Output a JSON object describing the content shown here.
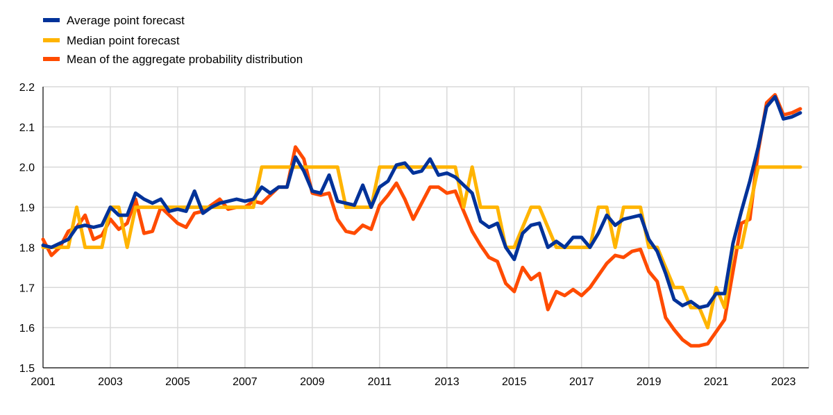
{
  "chart_data": {
    "type": "line",
    "title": "",
    "xlabel": "",
    "ylabel": "",
    "xlim": [
      2001.0,
      2023.75
    ],
    "ylim": [
      1.5,
      2.2
    ],
    "xticks": [
      2001,
      2003,
      2005,
      2007,
      2009,
      2011,
      2013,
      2015,
      2017,
      2019,
      2021,
      2023
    ],
    "yticks": [
      "1.5",
      "1.6",
      "1.7",
      "1.8",
      "1.9",
      "2.0",
      "2.1",
      "2.2"
    ],
    "grid": true,
    "legend_position": "top-left",
    "series": [
      {
        "name": "Mean of the aggregate probability distribution",
        "color": "#ff4b00",
        "points": [
          [
            2001.0,
            1.82
          ],
          [
            2001.25,
            1.78
          ],
          [
            2001.5,
            1.8
          ],
          [
            2001.75,
            1.84
          ],
          [
            2002.0,
            1.85
          ],
          [
            2002.25,
            1.88
          ],
          [
            2002.5,
            1.82
          ],
          [
            2002.75,
            1.83
          ],
          [
            2003.0,
            1.87
          ],
          [
            2003.25,
            1.845
          ],
          [
            2003.5,
            1.86
          ],
          [
            2003.75,
            1.92
          ],
          [
            2004.0,
            1.835
          ],
          [
            2004.25,
            1.84
          ],
          [
            2004.5,
            1.9
          ],
          [
            2004.75,
            1.88
          ],
          [
            2005.0,
            1.86
          ],
          [
            2005.25,
            1.85
          ],
          [
            2005.5,
            1.885
          ],
          [
            2005.75,
            1.89
          ],
          [
            2006.0,
            1.905
          ],
          [
            2006.25,
            1.92
          ],
          [
            2006.5,
            1.895
          ],
          [
            2006.75,
            1.9
          ],
          [
            2007.0,
            1.9
          ],
          [
            2007.25,
            1.915
          ],
          [
            2007.5,
            1.91
          ],
          [
            2007.75,
            1.93
          ],
          [
            2008.0,
            1.95
          ],
          [
            2008.25,
            1.95
          ],
          [
            2008.5,
            2.05
          ],
          [
            2008.75,
            2.02
          ],
          [
            2009.0,
            1.935
          ],
          [
            2009.25,
            1.93
          ],
          [
            2009.5,
            1.935
          ],
          [
            2009.75,
            1.87
          ],
          [
            2010.0,
            1.84
          ],
          [
            2010.25,
            1.835
          ],
          [
            2010.5,
            1.855
          ],
          [
            2010.75,
            1.845
          ],
          [
            2011.0,
            1.905
          ],
          [
            2011.25,
            1.93
          ],
          [
            2011.5,
            1.96
          ],
          [
            2011.75,
            1.92
          ],
          [
            2012.0,
            1.87
          ],
          [
            2012.25,
            1.91
          ],
          [
            2012.5,
            1.95
          ],
          [
            2012.75,
            1.95
          ],
          [
            2013.0,
            1.935
          ],
          [
            2013.25,
            1.94
          ],
          [
            2013.5,
            1.89
          ],
          [
            2013.75,
            1.84
          ],
          [
            2014.0,
            1.805
          ],
          [
            2014.25,
            1.775
          ],
          [
            2014.5,
            1.765
          ],
          [
            2014.75,
            1.71
          ],
          [
            2015.0,
            1.69
          ],
          [
            2015.25,
            1.75
          ],
          [
            2015.5,
            1.72
          ],
          [
            2015.75,
            1.735
          ],
          [
            2016.0,
            1.645
          ],
          [
            2016.25,
            1.69
          ],
          [
            2016.5,
            1.68
          ],
          [
            2016.75,
            1.695
          ],
          [
            2017.0,
            1.68
          ],
          [
            2017.25,
            1.7
          ],
          [
            2017.5,
            1.73
          ],
          [
            2017.75,
            1.76
          ],
          [
            2018.0,
            1.78
          ],
          [
            2018.25,
            1.775
          ],
          [
            2018.5,
            1.79
          ],
          [
            2018.75,
            1.795
          ],
          [
            2019.0,
            1.74
          ],
          [
            2019.25,
            1.715
          ],
          [
            2019.5,
            1.625
          ],
          [
            2019.75,
            1.595
          ],
          [
            2020.0,
            1.57
          ],
          [
            2020.25,
            1.555
          ],
          [
            2020.5,
            1.555
          ],
          [
            2020.75,
            1.56
          ],
          [
            2021.0,
            1.59
          ],
          [
            2021.25,
            1.62
          ],
          [
            2021.5,
            1.74
          ],
          [
            2021.75,
            1.86
          ],
          [
            2022.0,
            1.87
          ],
          [
            2022.25,
            2.04
          ],
          [
            2022.5,
            2.16
          ],
          [
            2022.75,
            2.18
          ],
          [
            2023.0,
            2.13
          ],
          [
            2023.25,
            2.135
          ],
          [
            2023.5,
            2.145
          ]
        ]
      },
      {
        "name": "Median point forecast",
        "color": "#ffb400",
        "points": [
          [
            2001.0,
            1.8
          ],
          [
            2001.25,
            1.8
          ],
          [
            2001.5,
            1.8
          ],
          [
            2001.75,
            1.8
          ],
          [
            2002.0,
            1.9
          ],
          [
            2002.25,
            1.8
          ],
          [
            2002.5,
            1.8
          ],
          [
            2002.75,
            1.8
          ],
          [
            2003.0,
            1.9
          ],
          [
            2003.25,
            1.9
          ],
          [
            2003.5,
            1.8
          ],
          [
            2003.75,
            1.9
          ],
          [
            2004.0,
            1.9
          ],
          [
            2004.25,
            1.9
          ],
          [
            2004.5,
            1.9
          ],
          [
            2004.75,
            1.9
          ],
          [
            2005.0,
            1.9
          ],
          [
            2005.25,
            1.9
          ],
          [
            2005.5,
            1.9
          ],
          [
            2005.75,
            1.9
          ],
          [
            2006.0,
            1.9
          ],
          [
            2006.25,
            1.9
          ],
          [
            2006.5,
            1.9
          ],
          [
            2006.75,
            1.9
          ],
          [
            2007.0,
            1.9
          ],
          [
            2007.25,
            1.9
          ],
          [
            2007.5,
            2.0
          ],
          [
            2007.75,
            2.0
          ],
          [
            2008.0,
            2.0
          ],
          [
            2008.25,
            2.0
          ],
          [
            2008.5,
            2.0
          ],
          [
            2008.75,
            2.0
          ],
          [
            2009.0,
            2.0
          ],
          [
            2009.25,
            2.0
          ],
          [
            2009.5,
            2.0
          ],
          [
            2009.75,
            2.0
          ],
          [
            2010.0,
            1.9
          ],
          [
            2010.25,
            1.9
          ],
          [
            2010.5,
            1.9
          ],
          [
            2010.75,
            1.9
          ],
          [
            2011.0,
            2.0
          ],
          [
            2011.25,
            2.0
          ],
          [
            2011.5,
            2.0
          ],
          [
            2011.75,
            2.0
          ],
          [
            2012.0,
            2.0
          ],
          [
            2012.25,
            2.0
          ],
          [
            2012.5,
            2.0
          ],
          [
            2012.75,
            2.0
          ],
          [
            2013.0,
            2.0
          ],
          [
            2013.25,
            2.0
          ],
          [
            2013.5,
            1.9
          ],
          [
            2013.75,
            2.0
          ],
          [
            2014.0,
            1.9
          ],
          [
            2014.25,
            1.9
          ],
          [
            2014.5,
            1.9
          ],
          [
            2014.75,
            1.8
          ],
          [
            2015.0,
            1.8
          ],
          [
            2015.25,
            1.85
          ],
          [
            2015.5,
            1.9
          ],
          [
            2015.75,
            1.9
          ],
          [
            2016.0,
            1.85
          ],
          [
            2016.25,
            1.8
          ],
          [
            2016.5,
            1.8
          ],
          [
            2016.75,
            1.8
          ],
          [
            2017.0,
            1.8
          ],
          [
            2017.25,
            1.8
          ],
          [
            2017.5,
            1.9
          ],
          [
            2017.75,
            1.9
          ],
          [
            2018.0,
            1.8
          ],
          [
            2018.25,
            1.9
          ],
          [
            2018.5,
            1.9
          ],
          [
            2018.75,
            1.9
          ],
          [
            2019.0,
            1.8
          ],
          [
            2019.25,
            1.8
          ],
          [
            2019.5,
            1.75
          ],
          [
            2019.75,
            1.7
          ],
          [
            2020.0,
            1.7
          ],
          [
            2020.25,
            1.65
          ],
          [
            2020.5,
            1.65
          ],
          [
            2020.75,
            1.6
          ],
          [
            2021.0,
            1.7
          ],
          [
            2021.25,
            1.65
          ],
          [
            2021.5,
            1.8
          ],
          [
            2021.75,
            1.8
          ],
          [
            2022.0,
            1.9
          ],
          [
            2022.25,
            2.0
          ],
          [
            2022.5,
            2.0
          ],
          [
            2022.75,
            2.0
          ],
          [
            2023.0,
            2.0
          ],
          [
            2023.25,
            2.0
          ],
          [
            2023.5,
            2.0
          ]
        ]
      },
      {
        "name": "Average point forecast",
        "color": "#003299",
        "points": [
          [
            2001.0,
            1.805
          ],
          [
            2001.25,
            1.8
          ],
          [
            2001.5,
            1.81
          ],
          [
            2001.75,
            1.82
          ],
          [
            2002.0,
            1.85
          ],
          [
            2002.25,
            1.855
          ],
          [
            2002.5,
            1.85
          ],
          [
            2002.75,
            1.855
          ],
          [
            2003.0,
            1.9
          ],
          [
            2003.25,
            1.88
          ],
          [
            2003.5,
            1.88
          ],
          [
            2003.75,
            1.935
          ],
          [
            2004.0,
            1.92
          ],
          [
            2004.25,
            1.91
          ],
          [
            2004.5,
            1.92
          ],
          [
            2004.75,
            1.89
          ],
          [
            2005.0,
            1.895
          ],
          [
            2005.25,
            1.89
          ],
          [
            2005.5,
            1.94
          ],
          [
            2005.75,
            1.885
          ],
          [
            2006.0,
            1.9
          ],
          [
            2006.25,
            1.91
          ],
          [
            2006.5,
            1.915
          ],
          [
            2006.75,
            1.92
          ],
          [
            2007.0,
            1.915
          ],
          [
            2007.25,
            1.92
          ],
          [
            2007.5,
            1.95
          ],
          [
            2007.75,
            1.935
          ],
          [
            2008.0,
            1.95
          ],
          [
            2008.25,
            1.95
          ],
          [
            2008.5,
            2.025
          ],
          [
            2008.75,
            1.99
          ],
          [
            2009.0,
            1.94
          ],
          [
            2009.25,
            1.935
          ],
          [
            2009.5,
            1.98
          ],
          [
            2009.75,
            1.915
          ],
          [
            2010.0,
            1.91
          ],
          [
            2010.25,
            1.905
          ],
          [
            2010.5,
            1.955
          ],
          [
            2010.75,
            1.9
          ],
          [
            2011.0,
            1.95
          ],
          [
            2011.25,
            1.965
          ],
          [
            2011.5,
            2.005
          ],
          [
            2011.75,
            2.01
          ],
          [
            2012.0,
            1.985
          ],
          [
            2012.25,
            1.99
          ],
          [
            2012.5,
            2.02
          ],
          [
            2012.75,
            1.98
          ],
          [
            2013.0,
            1.985
          ],
          [
            2013.25,
            1.975
          ],
          [
            2013.5,
            1.955
          ],
          [
            2013.75,
            1.935
          ],
          [
            2014.0,
            1.865
          ],
          [
            2014.25,
            1.85
          ],
          [
            2014.5,
            1.86
          ],
          [
            2014.75,
            1.8
          ],
          [
            2015.0,
            1.77
          ],
          [
            2015.25,
            1.835
          ],
          [
            2015.5,
            1.855
          ],
          [
            2015.75,
            1.86
          ],
          [
            2016.0,
            1.8
          ],
          [
            2016.25,
            1.815
          ],
          [
            2016.5,
            1.8
          ],
          [
            2016.75,
            1.825
          ],
          [
            2017.0,
            1.825
          ],
          [
            2017.25,
            1.8
          ],
          [
            2017.5,
            1.835
          ],
          [
            2017.75,
            1.88
          ],
          [
            2018.0,
            1.855
          ],
          [
            2018.25,
            1.87
          ],
          [
            2018.5,
            1.875
          ],
          [
            2018.75,
            1.88
          ],
          [
            2019.0,
            1.82
          ],
          [
            2019.25,
            1.79
          ],
          [
            2019.5,
            1.735
          ],
          [
            2019.75,
            1.67
          ],
          [
            2020.0,
            1.655
          ],
          [
            2020.25,
            1.665
          ],
          [
            2020.5,
            1.65
          ],
          [
            2020.75,
            1.655
          ],
          [
            2021.0,
            1.685
          ],
          [
            2021.25,
            1.685
          ],
          [
            2021.5,
            1.81
          ],
          [
            2021.75,
            1.89
          ],
          [
            2022.0,
            1.965
          ],
          [
            2022.25,
            2.05
          ],
          [
            2022.5,
            2.15
          ],
          [
            2022.75,
            2.175
          ],
          [
            2023.0,
            2.12
          ],
          [
            2023.25,
            2.125
          ],
          [
            2023.5,
            2.135
          ]
        ]
      }
    ]
  },
  "legend": [
    {
      "label": "Average point forecast",
      "color": "#003299"
    },
    {
      "label": "Median point forecast",
      "color": "#ffb400"
    },
    {
      "label": "Mean of the aggregate probability distribution",
      "color": "#ff4b00"
    }
  ]
}
